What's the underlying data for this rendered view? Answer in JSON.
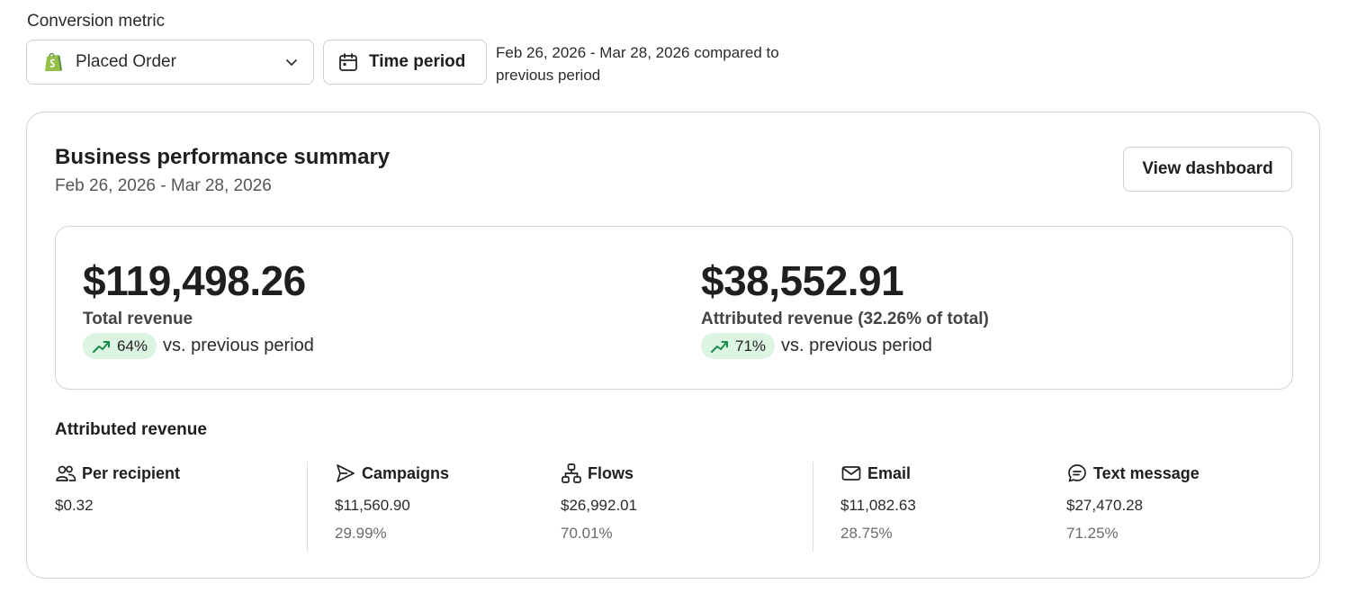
{
  "conversion_metric": {
    "label": "Conversion metric",
    "selected": "Placed Order",
    "icon": "shopify-bag-icon"
  },
  "time_period": {
    "button_label": "Time period",
    "description": "Feb 26, 2026 - Mar 28, 2026 compared to previous period"
  },
  "summary": {
    "title": "Business performance summary",
    "date_range": "Feb 26, 2026 - Mar 28, 2026",
    "view_dashboard_label": "View dashboard",
    "total_revenue": {
      "amount": "$119,498.26",
      "label": "Total revenue",
      "change": "64%",
      "vs_text": "vs. previous period"
    },
    "attributed_revenue": {
      "amount": "$38,552.91",
      "label": "Attributed revenue (32.26% of total)",
      "change": "71%",
      "vs_text": "vs. previous period"
    }
  },
  "attributed": {
    "title": "Attributed revenue",
    "stats": [
      {
        "label": "Per recipient",
        "value": "$0.32",
        "icon": "users-icon"
      },
      {
        "label": "Campaigns",
        "value": "$11,560.90",
        "percent": "29.99%",
        "icon": "send-icon"
      },
      {
        "label": "Flows",
        "value": "$26,992.01",
        "percent": "70.01%",
        "icon": "flows-icon"
      },
      {
        "label": "Email",
        "value": "$11,082.63",
        "percent": "28.75%",
        "icon": "mail-icon"
      },
      {
        "label": "Text message",
        "value": "$27,470.28",
        "percent": "71.25%",
        "icon": "chat-icon"
      }
    ]
  },
  "colors": {
    "badge_bg": "#dcf5e3",
    "trend_green": "#1a8a4a",
    "shopify_green": "#95bf47"
  }
}
